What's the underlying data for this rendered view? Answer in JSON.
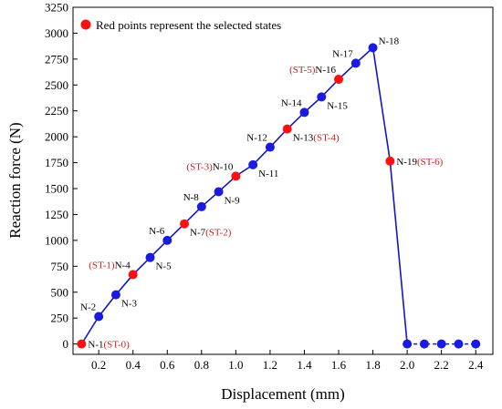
{
  "chart_data": {
    "type": "line",
    "xlabel": "Displacement (mm)",
    "ylabel": "Reaction force (N)",
    "xlim": [
      0.05,
      2.5
    ],
    "ylim": [
      -100,
      3250
    ],
    "xticks": [
      "0.2",
      "0.4",
      "0.6",
      "0.8",
      "1.0",
      "1.2",
      "1.4",
      "1.6",
      "1.8",
      "2.0",
      "2.2",
      "2.4"
    ],
    "yticks": [
      "0",
      "250",
      "500",
      "750",
      "1000",
      "1250",
      "1500",
      "1750",
      "2000",
      "2250",
      "2500",
      "2750",
      "3000",
      "3250"
    ],
    "legend": {
      "text": "Red points represent the selected states",
      "placement": "top-left"
    },
    "colors": {
      "line": "#1515c8",
      "normal": "#1a1ae0",
      "selected": "#ff1010",
      "state_label": "#cc2222",
      "node_label": "#000000"
    },
    "points": [
      {
        "x": 0.1,
        "y": 0,
        "node": "N-1",
        "state": "(ST-0)",
        "selected": true,
        "label_side": "right"
      },
      {
        "x": 0.2,
        "y": 265,
        "node": "N-2",
        "state": "",
        "selected": false,
        "label_side": "above-left"
      },
      {
        "x": 0.3,
        "y": 475,
        "node": "N-3",
        "state": "",
        "selected": false,
        "label_side": "below-right"
      },
      {
        "x": 0.4,
        "y": 670,
        "node": "N-4",
        "state": "(ST-1)",
        "selected": true,
        "label_side": "above-left"
      },
      {
        "x": 0.5,
        "y": 835,
        "node": "N-5",
        "state": "",
        "selected": false,
        "label_side": "below-right"
      },
      {
        "x": 0.6,
        "y": 1000,
        "node": "N-6",
        "state": "",
        "selected": false,
        "label_side": "above-left"
      },
      {
        "x": 0.7,
        "y": 1160,
        "node": "N-7",
        "state": "(ST-2)",
        "selected": true,
        "label_side": "below-right"
      },
      {
        "x": 0.8,
        "y": 1325,
        "node": "N-8",
        "state": "",
        "selected": false,
        "label_side": "above-left"
      },
      {
        "x": 0.9,
        "y": 1470,
        "node": "N-9",
        "state": "",
        "selected": false,
        "label_side": "below-right"
      },
      {
        "x": 1.0,
        "y": 1620,
        "node": "N-10",
        "state": "(ST-3)",
        "selected": true,
        "label_side": "above-left"
      },
      {
        "x": 1.1,
        "y": 1730,
        "node": "N-11",
        "state": "",
        "selected": false,
        "label_side": "below-right"
      },
      {
        "x": 1.2,
        "y": 1900,
        "node": "N-12",
        "state": "",
        "selected": false,
        "label_side": "above-left"
      },
      {
        "x": 1.3,
        "y": 2075,
        "node": "N-13",
        "state": "(ST-4)",
        "selected": true,
        "label_side": "below-right"
      },
      {
        "x": 1.4,
        "y": 2235,
        "node": "N-14",
        "state": "",
        "selected": false,
        "label_side": "above-left"
      },
      {
        "x": 1.5,
        "y": 2385,
        "node": "N-15",
        "state": "",
        "selected": false,
        "label_side": "below-right"
      },
      {
        "x": 1.6,
        "y": 2555,
        "node": "N-16",
        "state": "(ST-5)",
        "selected": true,
        "label_side": "above-left"
      },
      {
        "x": 1.7,
        "y": 2710,
        "node": "N-17",
        "state": "",
        "selected": false,
        "label_side": "above-left"
      },
      {
        "x": 1.8,
        "y": 2860,
        "node": "N-18",
        "state": "",
        "selected": false,
        "label_side": "above-right"
      },
      {
        "x": 1.9,
        "y": 1765,
        "node": "N-19",
        "state": "(ST-6)",
        "selected": true,
        "label_side": "right"
      },
      {
        "x": 2.0,
        "y": 0,
        "node": "",
        "state": "",
        "selected": false,
        "label_side": ""
      },
      {
        "x": 2.1,
        "y": 0,
        "node": "",
        "state": "",
        "selected": false,
        "label_side": ""
      },
      {
        "x": 2.2,
        "y": 0,
        "node": "",
        "state": "",
        "selected": false,
        "label_side": ""
      },
      {
        "x": 2.3,
        "y": 0,
        "node": "",
        "state": "",
        "selected": false,
        "label_side": ""
      },
      {
        "x": 2.4,
        "y": 0,
        "node": "",
        "state": "",
        "selected": false,
        "label_side": ""
      }
    ]
  }
}
